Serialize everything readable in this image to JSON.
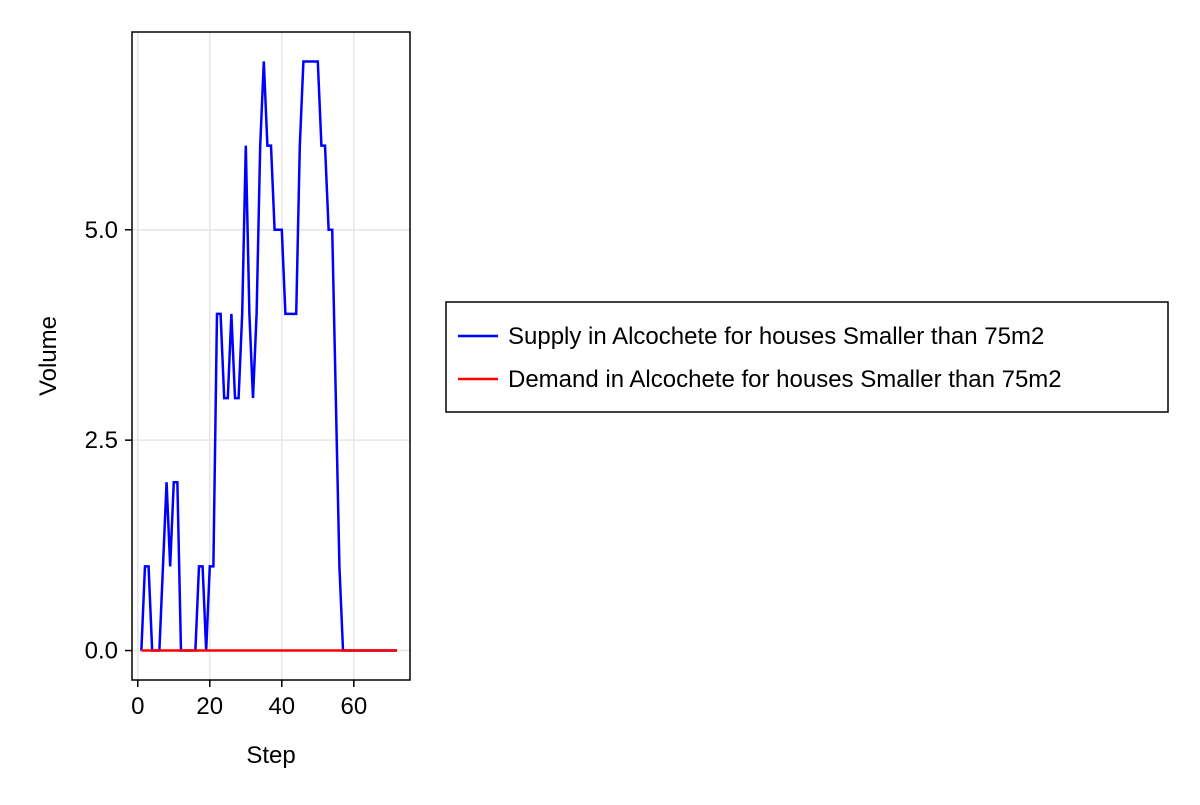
{
  "chart_data": {
    "type": "line",
    "title": "",
    "xlabel": "Step",
    "ylabel": "Volume",
    "xlim": [
      -1.6,
      75.6
    ],
    "ylim": [
      -0.35,
      7.35
    ],
    "xticks": [
      0,
      20,
      40,
      60
    ],
    "xtick_labels": [
      "0",
      "20",
      "40",
      "60"
    ],
    "yticks": [
      0.0,
      2.5,
      5.0
    ],
    "ytick_labels": [
      "0.0",
      "2.5",
      "5.0"
    ],
    "grid": true,
    "legend_position": "right",
    "series": [
      {
        "name": "Supply in Alcochete for houses Smaller than 75m2",
        "color": "#0000ff",
        "x": [
          1,
          2,
          3,
          4,
          5,
          6,
          7,
          8,
          9,
          10,
          11,
          12,
          13,
          14,
          15,
          16,
          17,
          18,
          19,
          20,
          21,
          22,
          23,
          24,
          25,
          26,
          27,
          28,
          29,
          30,
          31,
          32,
          33,
          34,
          35,
          36,
          37,
          38,
          39,
          40,
          41,
          42,
          43,
          44,
          45,
          46,
          47,
          48,
          49,
          50,
          51,
          52,
          53,
          54,
          55,
          56,
          57,
          58,
          59,
          60,
          61,
          62,
          63,
          64,
          65,
          66,
          67,
          68,
          69,
          70,
          71,
          72
        ],
        "values": [
          0,
          1,
          1,
          0,
          0,
          0,
          1,
          2,
          1,
          2,
          2,
          0,
          0,
          0,
          0,
          0,
          1,
          1,
          0,
          1,
          1,
          4,
          4,
          3,
          3,
          4,
          3,
          3,
          4,
          6,
          4,
          3,
          4,
          6,
          7,
          6,
          6,
          5,
          5,
          5,
          4,
          4,
          4,
          4,
          6,
          7,
          7,
          7,
          7,
          7,
          6,
          6,
          5,
          5,
          3,
          1,
          0,
          0,
          0,
          0,
          0,
          0,
          0,
          0,
          0,
          0,
          0,
          0,
          0,
          0,
          0,
          0
        ]
      },
      {
        "name": "Demand in Alcochete for houses Smaller than 75m2",
        "color": "#ff0000",
        "x": [
          1,
          2,
          3,
          4,
          5,
          6,
          7,
          8,
          9,
          10,
          11,
          12,
          13,
          14,
          15,
          16,
          17,
          18,
          19,
          20,
          21,
          22,
          23,
          24,
          25,
          26,
          27,
          28,
          29,
          30,
          31,
          32,
          33,
          34,
          35,
          36,
          37,
          38,
          39,
          40,
          41,
          42,
          43,
          44,
          45,
          46,
          47,
          48,
          49,
          50,
          51,
          52,
          53,
          54,
          55,
          56,
          57,
          58,
          59,
          60,
          61,
          62,
          63,
          64,
          65,
          66,
          67,
          68,
          69,
          70,
          71,
          72
        ],
        "values": [
          0,
          0,
          0,
          0,
          0,
          0,
          0,
          0,
          0,
          0,
          0,
          0,
          0,
          0,
          0,
          0,
          0,
          0,
          0,
          0,
          0,
          0,
          0,
          0,
          0,
          0,
          0,
          0,
          0,
          0,
          0,
          0,
          0,
          0,
          0,
          0,
          0,
          0,
          0,
          0,
          0,
          0,
          0,
          0,
          0,
          0,
          0,
          0,
          0,
          0,
          0,
          0,
          0,
          0,
          0,
          0,
          0,
          0,
          0,
          0,
          0,
          0,
          0,
          0,
          0,
          0,
          0,
          0,
          0,
          0,
          0,
          0
        ]
      }
    ]
  }
}
